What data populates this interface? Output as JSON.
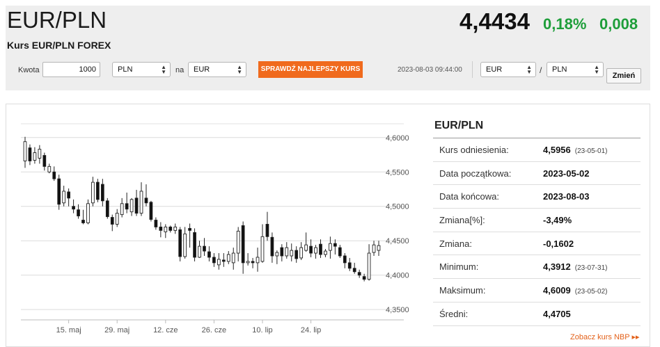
{
  "header": {
    "pair": "EUR/PLN",
    "subtitle": "Kurs EUR/PLN FOREX",
    "rate": "4,4434",
    "change_pct": "0,18%",
    "change_abs": "0,008"
  },
  "converter": {
    "amount_label": "Kwota",
    "amount_value": "1000",
    "from_currency": "PLN",
    "to_label": "na",
    "to_currency": "EUR",
    "best_rate_button": "SPRAWDŹ NAJLEPSZY KURS",
    "timestamp": "2023-08-03 09:44:00",
    "pair_base": "EUR",
    "pair_separator": "/",
    "pair_quote": "PLN",
    "change_button": "Zmień"
  },
  "colors": {
    "header_bg": "#eeeeee",
    "accent_orange": "#f06a1d",
    "positive_green": "#1e9e3a",
    "candle_up": "#ffffff",
    "candle_down": "#111111"
  },
  "stats": {
    "title": "EUR/PLN",
    "rows": [
      {
        "label": "Kurs odniesienia:",
        "value": "4,5956",
        "date": "(23-05-01)"
      },
      {
        "label": "Data początkowa:",
        "value": "2023-05-02",
        "date": ""
      },
      {
        "label": "Data końcowa:",
        "value": "2023-08-03",
        "date": ""
      },
      {
        "label": "Zmiana[%]:",
        "value": "-3,49%",
        "date": ""
      },
      {
        "label": "Zmiana:",
        "value": "-0,1602",
        "date": ""
      },
      {
        "label": "Minimum:",
        "value": "4,3912",
        "date": "(23-07-31)"
      },
      {
        "label": "Maksimum:",
        "value": "4,6009",
        "date": "(23-05-02)"
      },
      {
        "label": "Średni:",
        "value": "4,4705",
        "date": ""
      }
    ],
    "nbp_link": "Zobacz kurs NBP ▸▸"
  },
  "chart_data": {
    "type": "candlestick",
    "x_ticks": [
      "15. maj",
      "29. maj",
      "12. cze",
      "26. cze",
      "10. lip",
      "24. lip"
    ],
    "x_tick_index": [
      9,
      19,
      29,
      39,
      49,
      59
    ],
    "y_ticks": [
      "4,3500",
      "4,4000",
      "4,4500",
      "4,5000",
      "4,5500",
      "4,6000"
    ],
    "ylim": [
      4.335,
      4.62
    ],
    "grid": true,
    "candles": [
      {
        "o": 4.566,
        "h": 4.601,
        "l": 4.556,
        "c": 4.594
      },
      {
        "o": 4.585,
        "h": 4.59,
        "l": 4.56,
        "c": 4.566
      },
      {
        "o": 4.567,
        "h": 4.586,
        "l": 4.562,
        "c": 4.578
      },
      {
        "o": 4.57,
        "h": 4.589,
        "l": 4.562,
        "c": 4.583
      },
      {
        "o": 4.574,
        "h": 4.578,
        "l": 4.552,
        "c": 4.558
      },
      {
        "o": 4.55,
        "h": 4.562,
        "l": 4.548,
        "c": 4.558
      },
      {
        "o": 4.55,
        "h": 4.558,
        "l": 4.537,
        "c": 4.54
      },
      {
        "o": 4.54,
        "h": 4.546,
        "l": 4.495,
        "c": 4.503
      },
      {
        "o": 4.505,
        "h": 4.53,
        "l": 4.5,
        "c": 4.522
      },
      {
        "o": 4.521,
        "h": 4.526,
        "l": 4.5,
        "c": 4.512
      },
      {
        "o": 4.5,
        "h": 4.51,
        "l": 4.49,
        "c": 4.496
      },
      {
        "o": 4.495,
        "h": 4.503,
        "l": 4.482,
        "c": 4.486
      },
      {
        "o": 4.48,
        "h": 4.495,
        "l": 4.474,
        "c": 4.476
      },
      {
        "o": 4.476,
        "h": 4.51,
        "l": 4.474,
        "c": 4.504
      },
      {
        "o": 4.505,
        "h": 4.543,
        "l": 4.5,
        "c": 4.535
      },
      {
        "o": 4.535,
        "h": 4.54,
        "l": 4.506,
        "c": 4.51
      },
      {
        "o": 4.532,
        "h": 4.54,
        "l": 4.5,
        "c": 4.508
      },
      {
        "o": 4.508,
        "h": 4.512,
        "l": 4.482,
        "c": 4.485
      },
      {
        "o": 4.484,
        "h": 4.488,
        "l": 4.464,
        "c": 4.474
      },
      {
        "o": 4.474,
        "h": 4.496,
        "l": 4.47,
        "c": 4.49
      },
      {
        "o": 4.488,
        "h": 4.512,
        "l": 4.484,
        "c": 4.504
      },
      {
        "o": 4.504,
        "h": 4.52,
        "l": 4.49,
        "c": 4.496
      },
      {
        "o": 4.492,
        "h": 4.512,
        "l": 4.486,
        "c": 4.51
      },
      {
        "o": 4.512,
        "h": 4.524,
        "l": 4.486,
        "c": 4.49
      },
      {
        "o": 4.49,
        "h": 4.535,
        "l": 4.486,
        "c": 4.522
      },
      {
        "o": 4.512,
        "h": 4.532,
        "l": 4.5,
        "c": 4.505
      },
      {
        "o": 4.506,
        "h": 4.508,
        "l": 4.478,
        "c": 4.481
      },
      {
        "o": 4.48,
        "h": 4.484,
        "l": 4.466,
        "c": 4.47
      },
      {
        "o": 4.47,
        "h": 4.477,
        "l": 4.455,
        "c": 4.465
      },
      {
        "o": 4.463,
        "h": 4.474,
        "l": 4.454,
        "c": 4.47
      },
      {
        "o": 4.47,
        "h": 4.472,
        "l": 4.462,
        "c": 4.465
      },
      {
        "o": 4.465,
        "h": 4.475,
        "l": 4.46,
        "c": 4.47
      },
      {
        "o": 4.466,
        "h": 4.47,
        "l": 4.42,
        "c": 4.427
      },
      {
        "o": 4.427,
        "h": 4.47,
        "l": 4.424,
        "c": 4.46
      },
      {
        "o": 4.468,
        "h": 4.475,
        "l": 4.44,
        "c": 4.465
      },
      {
        "o": 4.462,
        "h": 4.468,
        "l": 4.42,
        "c": 4.426
      },
      {
        "o": 4.426,
        "h": 4.45,
        "l": 4.425,
        "c": 4.442
      },
      {
        "o": 4.442,
        "h": 4.454,
        "l": 4.428,
        "c": 4.435
      },
      {
        "o": 4.434,
        "h": 4.442,
        "l": 4.42,
        "c": 4.426
      },
      {
        "o": 4.426,
        "h": 4.432,
        "l": 4.412,
        "c": 4.418
      },
      {
        "o": 4.415,
        "h": 4.432,
        "l": 4.408,
        "c": 4.423
      },
      {
        "o": 4.422,
        "h": 4.432,
        "l": 4.412,
        "c": 4.42
      },
      {
        "o": 4.42,
        "h": 4.435,
        "l": 4.416,
        "c": 4.43
      },
      {
        "o": 4.418,
        "h": 4.44,
        "l": 4.408,
        "c": 4.432
      },
      {
        "o": 4.432,
        "h": 4.47,
        "l": 4.42,
        "c": 4.464
      },
      {
        "o": 4.472,
        "h": 4.478,
        "l": 4.402,
        "c": 4.418
      },
      {
        "o": 4.418,
        "h": 4.432,
        "l": 4.414,
        "c": 4.42
      },
      {
        "o": 4.42,
        "h": 4.425,
        "l": 4.41,
        "c": 4.418
      },
      {
        "o": 4.418,
        "h": 4.44,
        "l": 4.405,
        "c": 4.426
      },
      {
        "o": 4.42,
        "h": 4.474,
        "l": 4.418,
        "c": 4.456
      },
      {
        "o": 4.474,
        "h": 4.492,
        "l": 4.45,
        "c": 4.456
      },
      {
        "o": 4.455,
        "h": 4.462,
        "l": 4.418,
        "c": 4.428
      },
      {
        "o": 4.428,
        "h": 4.436,
        "l": 4.416,
        "c": 4.433
      },
      {
        "o": 4.44,
        "h": 4.445,
        "l": 4.42,
        "c": 4.428
      },
      {
        "o": 4.428,
        "h": 4.448,
        "l": 4.424,
        "c": 4.44
      },
      {
        "o": 4.428,
        "h": 4.446,
        "l": 4.42,
        "c": 4.436
      },
      {
        "o": 4.436,
        "h": 4.442,
        "l": 4.418,
        "c": 4.424
      },
      {
        "o": 4.425,
        "h": 4.448,
        "l": 4.422,
        "c": 4.44
      },
      {
        "o": 4.436,
        "h": 4.462,
        "l": 4.434,
        "c": 4.444
      },
      {
        "o": 4.442,
        "h": 4.452,
        "l": 4.426,
        "c": 4.432
      },
      {
        "o": 4.432,
        "h": 4.444,
        "l": 4.424,
        "c": 4.44
      },
      {
        "o": 4.445,
        "h": 4.452,
        "l": 4.425,
        "c": 4.43
      },
      {
        "o": 4.43,
        "h": 4.438,
        "l": 4.426,
        "c": 4.435
      },
      {
        "o": 4.436,
        "h": 4.456,
        "l": 4.424,
        "c": 4.446
      },
      {
        "o": 4.446,
        "h": 4.452,
        "l": 4.43,
        "c": 4.442
      },
      {
        "o": 4.44,
        "h": 4.444,
        "l": 4.425,
        "c": 4.428
      },
      {
        "o": 4.428,
        "h": 4.432,
        "l": 4.41,
        "c": 4.418
      },
      {
        "o": 4.418,
        "h": 4.425,
        "l": 4.406,
        "c": 4.41
      },
      {
        "o": 4.41,
        "h": 4.418,
        "l": 4.402,
        "c": 4.405
      },
      {
        "o": 4.404,
        "h": 4.408,
        "l": 4.396,
        "c": 4.4
      },
      {
        "o": 4.398,
        "h": 4.402,
        "l": 4.391,
        "c": 4.394
      },
      {
        "o": 4.394,
        "h": 4.445,
        "l": 4.392,
        "c": 4.432
      },
      {
        "o": 4.433,
        "h": 4.45,
        "l": 4.428,
        "c": 4.444
      },
      {
        "o": 4.436,
        "h": 4.45,
        "l": 4.428,
        "c": 4.443
      }
    ]
  }
}
